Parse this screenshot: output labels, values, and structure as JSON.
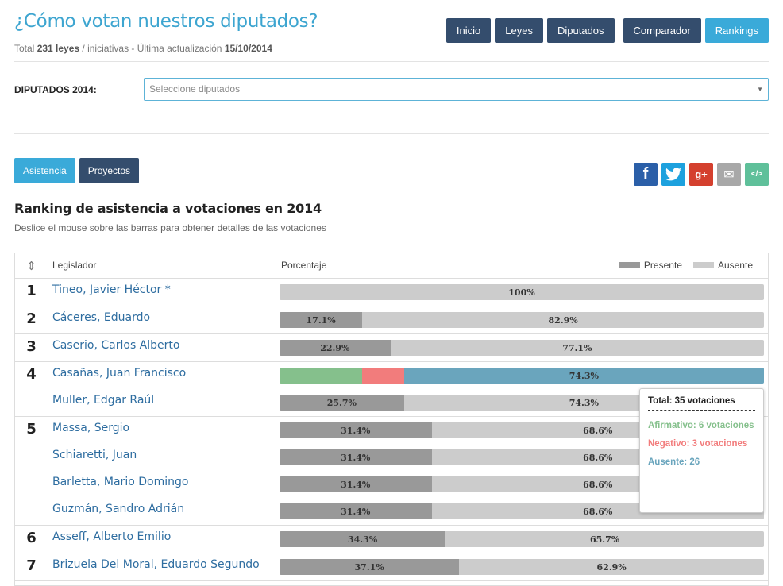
{
  "header": {
    "title": "¿Cómo votan nuestros diputados?",
    "subtitle": {
      "prefix": "Total ",
      "count": "231 leyes",
      "middle": " / iniciativas - Última actualización ",
      "date": "15/10/2014"
    },
    "nav": [
      {
        "label": "Inicio",
        "active": false
      },
      {
        "label": "Leyes",
        "active": false
      },
      {
        "label": "Diputados",
        "active": false
      },
      {
        "label": "Comparador",
        "active": false
      },
      {
        "label": "Rankings",
        "active": true
      }
    ]
  },
  "selector": {
    "label": "DIPUTADOS 2014:",
    "placeholder": "Seleccione diputados"
  },
  "tabs": [
    {
      "label": "Asistencia",
      "active": true
    },
    {
      "label": "Proyectos",
      "active": false
    }
  ],
  "share": {
    "facebook_glyph": "f",
    "twitter_glyph": "🐦",
    "googleplus_glyph": "g+",
    "email_glyph": "✉",
    "embed_glyph": "</>"
  },
  "section": {
    "title": "Ranking de asistencia a votaciones en 2014",
    "subtitle": "Deslice el mouse sobre las barras para obtener detalles de las votaciones"
  },
  "table": {
    "sort_icon": "⇕",
    "col_legislador": "Legislador",
    "col_porcentaje": "Porcentaje",
    "legend_present": "Presente",
    "legend_absent": "Ausente"
  },
  "colors": {
    "present": "#999999",
    "absent": "#cccccc",
    "afirmativo": "#85c08c",
    "negativo": "#f27c7c",
    "ausente_hover": "#6aa5bd"
  },
  "ranking": [
    {
      "rank": "1",
      "members": [
        {
          "name": "Tineo, Javier Héctor *",
          "present": 0,
          "absent": 100,
          "absent_label": "100%"
        }
      ]
    },
    {
      "rank": "2",
      "members": [
        {
          "name": "Cáceres, Eduardo",
          "present": 17.1,
          "absent": 82.9,
          "present_label": "17.1%",
          "absent_label": "82.9%"
        }
      ]
    },
    {
      "rank": "3",
      "members": [
        {
          "name": "Caserio, Carlos Alberto",
          "present": 22.9,
          "absent": 77.1,
          "present_label": "22.9%",
          "absent_label": "77.1%"
        }
      ]
    },
    {
      "rank": "4",
      "members": [
        {
          "name": "Casañas, Juan Francisco",
          "highlight": true,
          "afirmativo": 17.1,
          "negativo": 8.6,
          "absent": 74.3,
          "absent_label": "74.3%"
        },
        {
          "name": "Muller, Edgar Raúl",
          "present": 25.7,
          "absent": 74.3,
          "present_label": "25.7%",
          "absent_label": "74.3%"
        }
      ]
    },
    {
      "rank": "5",
      "members": [
        {
          "name": "Massa, Sergio",
          "present": 31.4,
          "absent": 68.6,
          "present_label": "31.4%",
          "absent_label": "68.6%"
        },
        {
          "name": "Schiaretti, Juan",
          "present": 31.4,
          "absent": 68.6,
          "present_label": "31.4%",
          "absent_label": "68.6%"
        },
        {
          "name": "Barletta, Mario Domingo",
          "present": 31.4,
          "absent": 68.6,
          "present_label": "31.4%",
          "absent_label": "68.6%"
        },
        {
          "name": "Guzmán, Sandro Adrián",
          "present": 31.4,
          "absent": 68.6,
          "present_label": "31.4%",
          "absent_label": "68.6%"
        }
      ]
    },
    {
      "rank": "6",
      "members": [
        {
          "name": "Asseff, Alberto Emilio",
          "present": 34.3,
          "absent": 65.7,
          "present_label": "34.3%",
          "absent_label": "65.7%"
        }
      ]
    },
    {
      "rank": "7",
      "members": [
        {
          "name": "Brizuela Del Moral, Eduardo Segundo",
          "present": 37.1,
          "absent": 62.9,
          "present_label": "37.1%",
          "absent_label": "62.9%"
        }
      ]
    }
  ],
  "tooltip": {
    "total": "Total: 35 votaciones",
    "afirmativo": "Afirmativo: 6 votaciones",
    "negativo": "Negativo: 3 votaciones",
    "ausente": "Ausente: 26"
  }
}
